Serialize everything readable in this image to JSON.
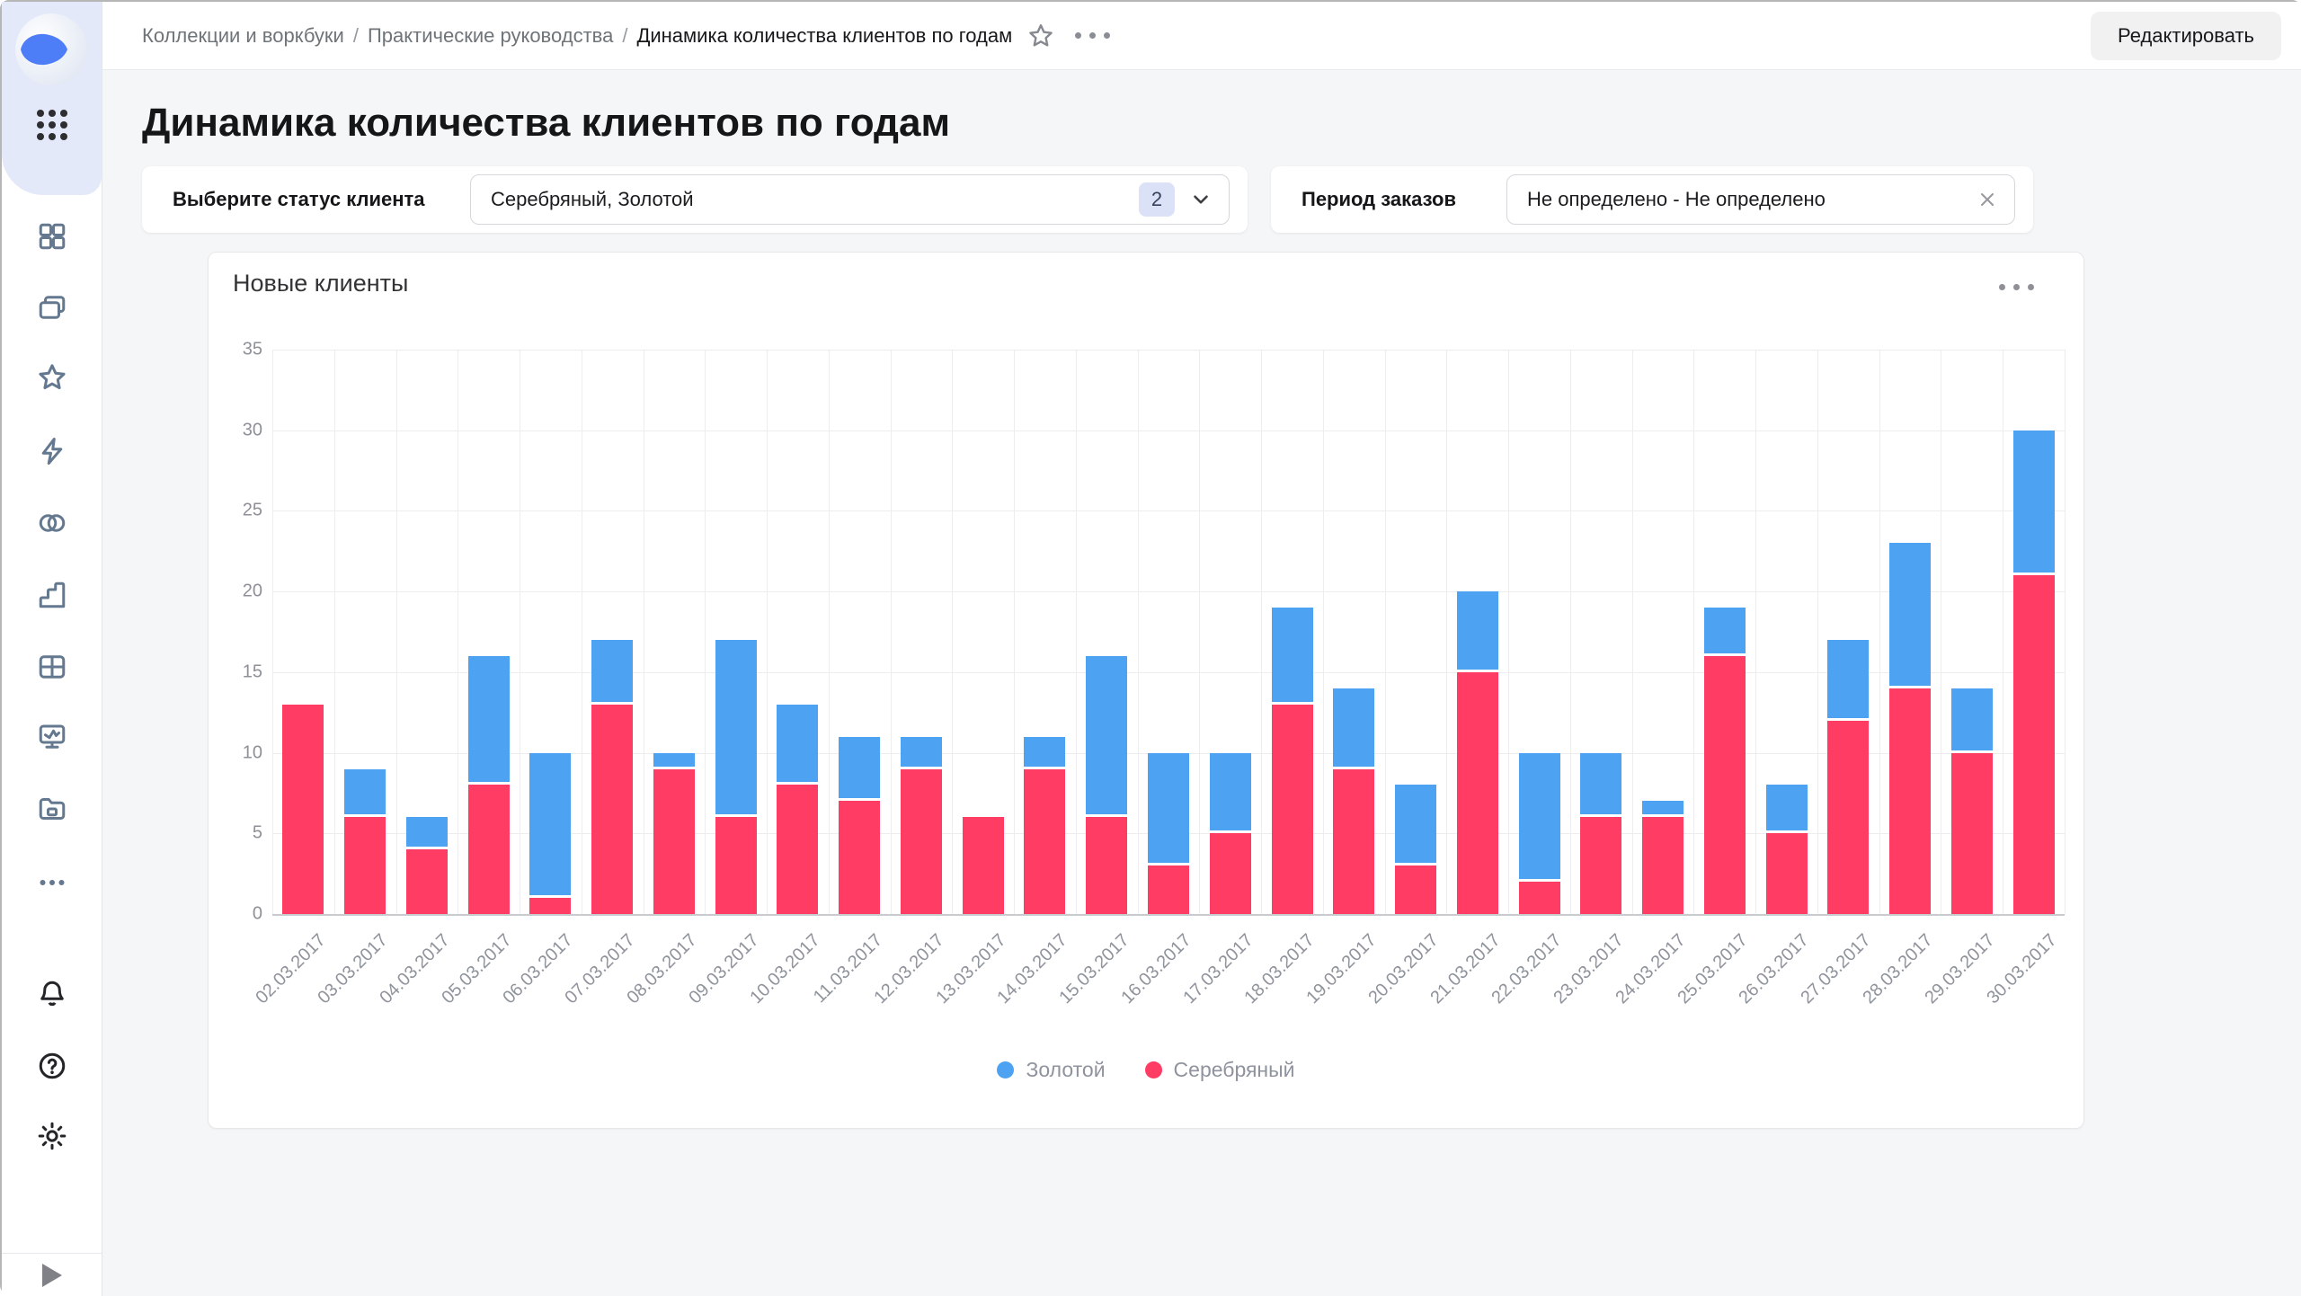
{
  "app": {
    "name": "DataLens"
  },
  "header": {
    "breadcrumbs": [
      {
        "label": "Коллекции и воркбуки"
      },
      {
        "label": "Практические руководства"
      },
      {
        "label": "Динамика количества клиентов по годам"
      }
    ],
    "separator": "/",
    "edit_button": "Редактировать"
  },
  "sidebar": {
    "logo_icon": "datalens-logo-icon",
    "apps_menu_icon": "dots-grid-9-icon",
    "nav_icons": [
      "squares-grid-icon",
      "collections-icon",
      "star-icon",
      "lightning-icon",
      "linked-circles-icon",
      "bar-chart-icon",
      "table-icon",
      "monitoring-icon",
      "storage-folder-icon",
      "ellipsis-icon"
    ],
    "footer_icons": [
      "bell-icon",
      "help-icon",
      "gear-icon"
    ],
    "expand_icon": "play-icon"
  },
  "page": {
    "title": "Динамика количества клиентов по годам"
  },
  "filters": {
    "status": {
      "label": "Выберите статус клиента",
      "value": "Серебряный, Золотой",
      "count_badge": "2"
    },
    "period": {
      "label": "Период заказов",
      "value": "Не определено - Не определено"
    }
  },
  "chart_card": {
    "title": "Новые клиенты",
    "menu_icon": "ellipsis-icon"
  },
  "chart_data": {
    "type": "bar",
    "stacked": true,
    "title": "Новые клиенты",
    "xlabel": "",
    "ylabel": "",
    "ylim": [
      0,
      35
    ],
    "ytick_step": 5,
    "grid": true,
    "legend_position": "bottom",
    "stack_bottom": "Серебряный",
    "categories": [
      "02.03.2017",
      "03.03.2017",
      "04.03.2017",
      "05.03.2017",
      "06.03.2017",
      "07.03.2017",
      "08.03.2017",
      "09.03.2017",
      "10.03.2017",
      "11.03.2017",
      "12.03.2017",
      "13.03.2017",
      "14.03.2017",
      "15.03.2017",
      "16.03.2017",
      "17.03.2017",
      "18.03.2017",
      "19.03.2017",
      "20.03.2017",
      "21.03.2017",
      "22.03.2017",
      "23.03.2017",
      "24.03.2017",
      "25.03.2017",
      "26.03.2017",
      "27.03.2017",
      "28.03.2017",
      "29.03.2017",
      "30.03.2017"
    ],
    "series": [
      {
        "name": "Золотой",
        "color": "#4da2f1",
        "values": [
          0,
          3,
          2,
          8,
          9,
          4,
          1,
          11,
          5,
          4,
          2,
          0,
          2,
          10,
          7,
          5,
          6,
          5,
          5,
          5,
          8,
          4,
          1,
          3,
          3,
          5,
          9,
          4,
          9
        ]
      },
      {
        "name": "Серебряный",
        "color": "#ff3d64",
        "values": [
          13,
          6,
          4,
          8,
          1,
          13,
          9,
          6,
          8,
          7,
          9,
          6,
          9,
          6,
          3,
          5,
          13,
          9,
          3,
          15,
          2,
          6,
          6,
          16,
          5,
          12,
          14,
          10,
          21
        ]
      }
    ]
  },
  "colors": {
    "gold": "#4da2f1",
    "silver": "#ff3d64",
    "sidebar_top_bg": "#e4e9f9",
    "badge_bg": "#dbe2f8",
    "content_bg": "#f5f6f8"
  }
}
